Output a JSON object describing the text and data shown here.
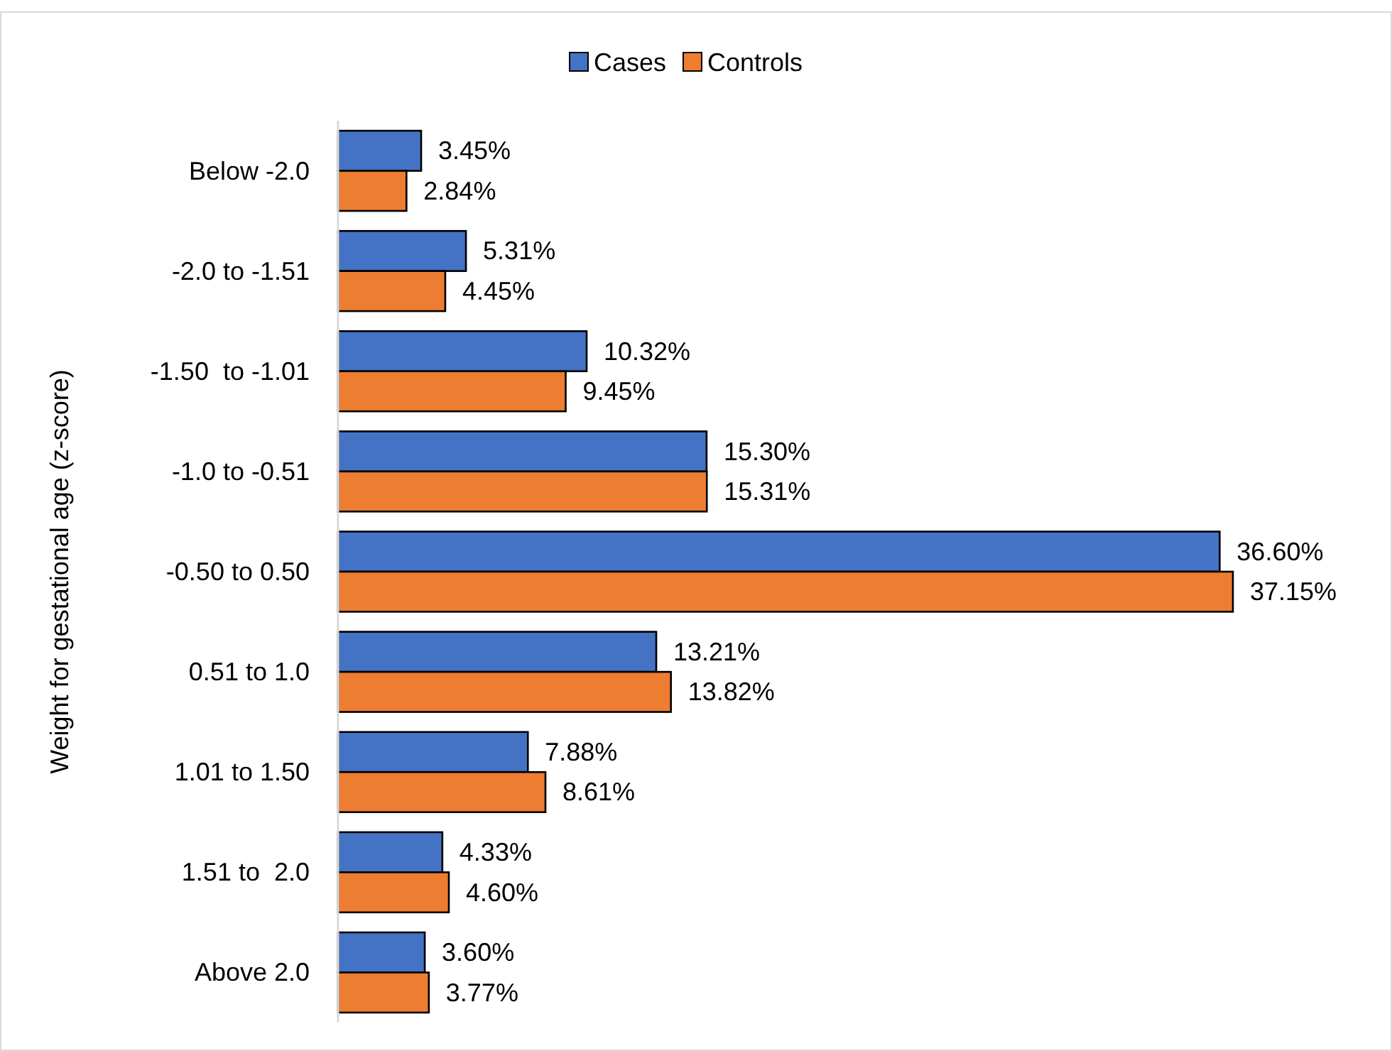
{
  "chart_data": {
    "type": "bar",
    "orientation": "horizontal",
    "ylabel": "Weight for gestational age (z-score)",
    "categories": [
      "Below -2.0",
      "-2.0 to -1.51",
      "-1.50  to -1.01",
      "-1.0 to -0.51",
      "-0.50 to 0.50",
      "0.51 to 1.0",
      "1.01 to 1.50",
      "1.51 to  2.0",
      "Above 2.0"
    ],
    "series": [
      {
        "name": "Cases",
        "color": "#4472c4",
        "values": [
          3.45,
          5.31,
          10.32,
          15.3,
          36.6,
          13.21,
          7.88,
          4.33,
          3.6
        ],
        "value_labels": [
          "3.45%",
          "5.31%",
          "10.32%",
          "15.30%",
          "36.60%",
          "13.21%",
          "7.88%",
          "4.33%",
          "3.60%"
        ]
      },
      {
        "name": "Controls",
        "color": "#ed7d31",
        "values": [
          2.84,
          4.45,
          9.45,
          15.31,
          37.15,
          13.82,
          8.61,
          4.6,
          3.77
        ],
        "value_labels": [
          "2.84%",
          "4.45%",
          "9.45%",
          "15.31%",
          "37.15%",
          "13.82%",
          "8.61%",
          "4.60%",
          "3.77%"
        ]
      }
    ],
    "legend": "top"
  }
}
